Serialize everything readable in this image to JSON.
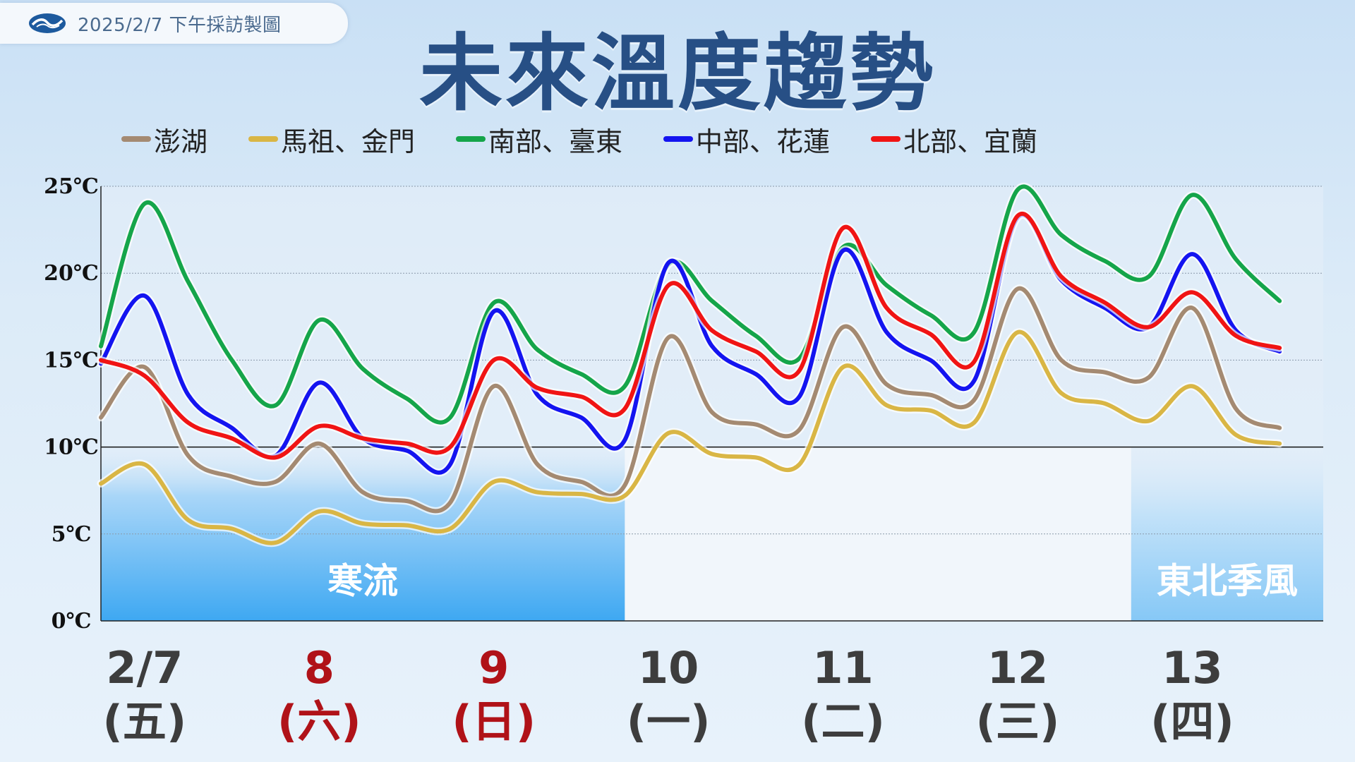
{
  "header": {
    "stamp": "2025/2/7 下午採訪製圖",
    "title": "未來溫度趨勢"
  },
  "colors": {
    "title": "#274f85",
    "cold_band": "#3ea8f2",
    "monsoon_band": "#86c8f6"
  },
  "chart_data": {
    "type": "line",
    "ylim": [
      0,
      25
    ],
    "yticks": [
      "0℃",
      "5℃",
      "10℃",
      "15℃",
      "20℃",
      "25℃"
    ],
    "ytick_values": [
      0,
      5,
      10,
      15,
      20,
      25
    ],
    "reference_line": 10,
    "days": [
      {
        "date": "2/7",
        "weekday": "(五)",
        "color": "#3d3d3d"
      },
      {
        "date": "8",
        "weekday": "(六)",
        "color": "#b01218"
      },
      {
        "date": "9",
        "weekday": "(日)",
        "color": "#b01218"
      },
      {
        "date": "10",
        "weekday": "(一)",
        "color": "#3d3d3d"
      },
      {
        "date": "11",
        "weekday": "(二)",
        "color": "#3d3d3d"
      },
      {
        "date": "12",
        "weekday": "(三)",
        "color": "#3d3d3d"
      },
      {
        "date": "13",
        "weekday": "(四)",
        "color": "#3d3d3d"
      }
    ],
    "x": [
      0.0,
      0.25,
      0.5,
      0.75,
      1.0,
      1.25,
      1.5,
      1.75,
      2.0,
      2.25,
      2.5,
      2.75,
      3.0,
      3.25,
      3.5,
      3.75,
      4.0,
      4.25,
      4.5,
      4.75,
      5.0,
      5.25,
      5.5,
      5.75,
      6.0,
      6.25,
      6.5,
      6.75
    ],
    "series": [
      {
        "name": "澎湖",
        "color": "#a48a72",
        "values": [
          11.7,
          14.6,
          9.5,
          8.3,
          8.0,
          10.2,
          7.4,
          6.9,
          6.8,
          13.5,
          9.0,
          8.0,
          7.8,
          16.3,
          12.0,
          11.3,
          11.0,
          16.9,
          13.6,
          13.0,
          12.7,
          19.1,
          15.0,
          14.3,
          14.0,
          18.0,
          12.2,
          11.1
        ]
      },
      {
        "name": "馬祖、金門",
        "color": "#d9b645",
        "values": [
          7.9,
          9.0,
          5.8,
          5.3,
          4.5,
          6.3,
          5.6,
          5.5,
          5.3,
          8.0,
          7.4,
          7.3,
          7.2,
          10.8,
          9.6,
          9.4,
          9.0,
          14.6,
          12.4,
          12.1,
          11.4,
          16.6,
          13.1,
          12.5,
          11.5,
          13.5,
          10.7,
          10.2
        ]
      },
      {
        "name": "南部、臺東",
        "color": "#15a54a",
        "values": [
          15.8,
          24.0,
          19.5,
          15.0,
          12.4,
          17.3,
          14.5,
          12.8,
          11.7,
          18.3,
          15.6,
          14.2,
          13.5,
          20.5,
          18.4,
          16.4,
          15.1,
          21.5,
          19.3,
          17.6,
          16.6,
          24.8,
          22.2,
          20.7,
          19.8,
          24.5,
          20.8,
          18.4
        ]
      },
      {
        "name": "中部、花蓮",
        "color": "#1414f0",
        "values": [
          14.8,
          18.7,
          13.0,
          11.1,
          9.5,
          13.7,
          10.5,
          9.8,
          9.0,
          17.8,
          13.0,
          11.7,
          10.4,
          20.6,
          15.8,
          14.2,
          12.9,
          21.3,
          16.6,
          15.0,
          13.8,
          23.2,
          19.6,
          18.0,
          16.9,
          21.1,
          16.7,
          15.5
        ]
      },
      {
        "name": "北部、宜蘭",
        "color": "#f01414",
        "values": [
          15.0,
          14.1,
          11.4,
          10.5,
          9.4,
          11.2,
          10.5,
          10.2,
          10.0,
          15.0,
          13.4,
          12.9,
          12.2,
          19.3,
          16.7,
          15.5,
          14.4,
          22.6,
          18.0,
          16.5,
          14.9,
          23.3,
          19.8,
          18.3,
          16.9,
          18.9,
          16.4,
          15.7
        ]
      }
    ],
    "bands": [
      {
        "label": "寒流",
        "x_start": 0.0,
        "x_end": 3.0
      },
      {
        "label": "東北季風",
        "x_start": 5.9,
        "x_end": 7.0
      }
    ]
  }
}
